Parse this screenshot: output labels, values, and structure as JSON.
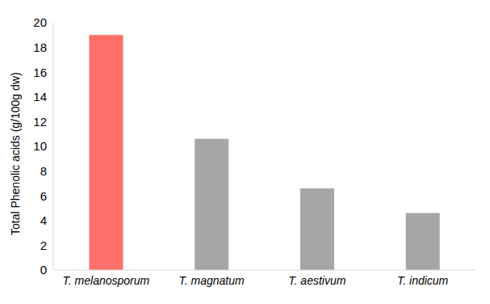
{
  "chart_data": {
    "type": "bar",
    "y_label": "Total Phenolic acids (g/100g dw)",
    "categories": [
      "T. melanosporum",
      "T. magnatum",
      "T. aestivum",
      "T. indicum"
    ],
    "values": [
      19.0,
      10.6,
      6.6,
      4.6
    ],
    "colors": [
      "#ff6f69",
      "#a6a6a6",
      "#a6a6a6",
      "#a6a6a6"
    ],
    "ylim": [
      0,
      20
    ],
    "yticks": [
      0,
      2,
      4,
      6,
      8,
      10,
      12,
      14,
      16,
      18,
      20
    ],
    "grid": false
  }
}
